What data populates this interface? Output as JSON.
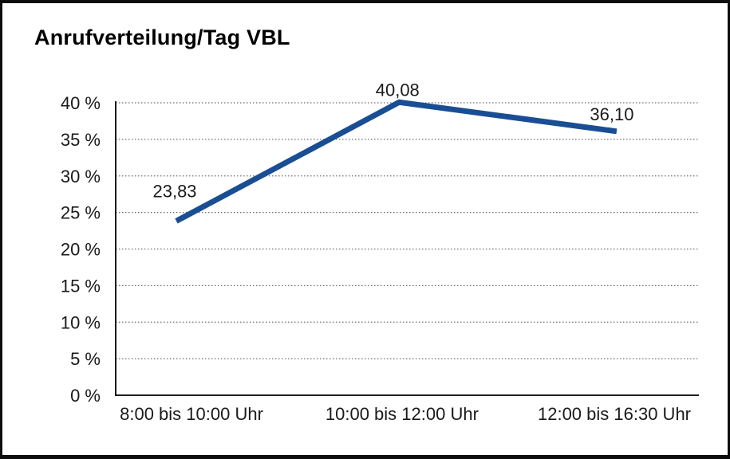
{
  "chart_data": {
    "type": "line",
    "title": "Anrufverteilung/Tag VBL",
    "categories": [
      "8:00 bis 10:00 Uhr",
      "10:00 bis 12:00 Uhr",
      "12:00 bis 16:30 Uhr"
    ],
    "values": [
      23.83,
      40.08,
      36.1
    ],
    "value_labels": [
      "23,83",
      "40,08",
      "36,10"
    ],
    "xlabel": "",
    "ylabel": "",
    "ylim": [
      0,
      40
    ],
    "y_tick_step": 5,
    "y_ticks": [
      {
        "value": 0,
        "label": "0 %"
      },
      {
        "value": 5,
        "label": "5 %"
      },
      {
        "value": 10,
        "label": "10 %"
      },
      {
        "value": 15,
        "label": "15 %"
      },
      {
        "value": 20,
        "label": "20 %"
      },
      {
        "value": 25,
        "label": "25 %"
      },
      {
        "value": 30,
        "label": "30 %"
      },
      {
        "value": 35,
        "label": "35 %"
      },
      {
        "value": 40,
        "label": "40 %"
      }
    ],
    "legend": "none",
    "grid": "horizontal-dotted",
    "line_color": "#1a4e94",
    "axis_color": "#000000",
    "grid_color": "#6e6e6e",
    "text_color": "#1a1a1a"
  }
}
